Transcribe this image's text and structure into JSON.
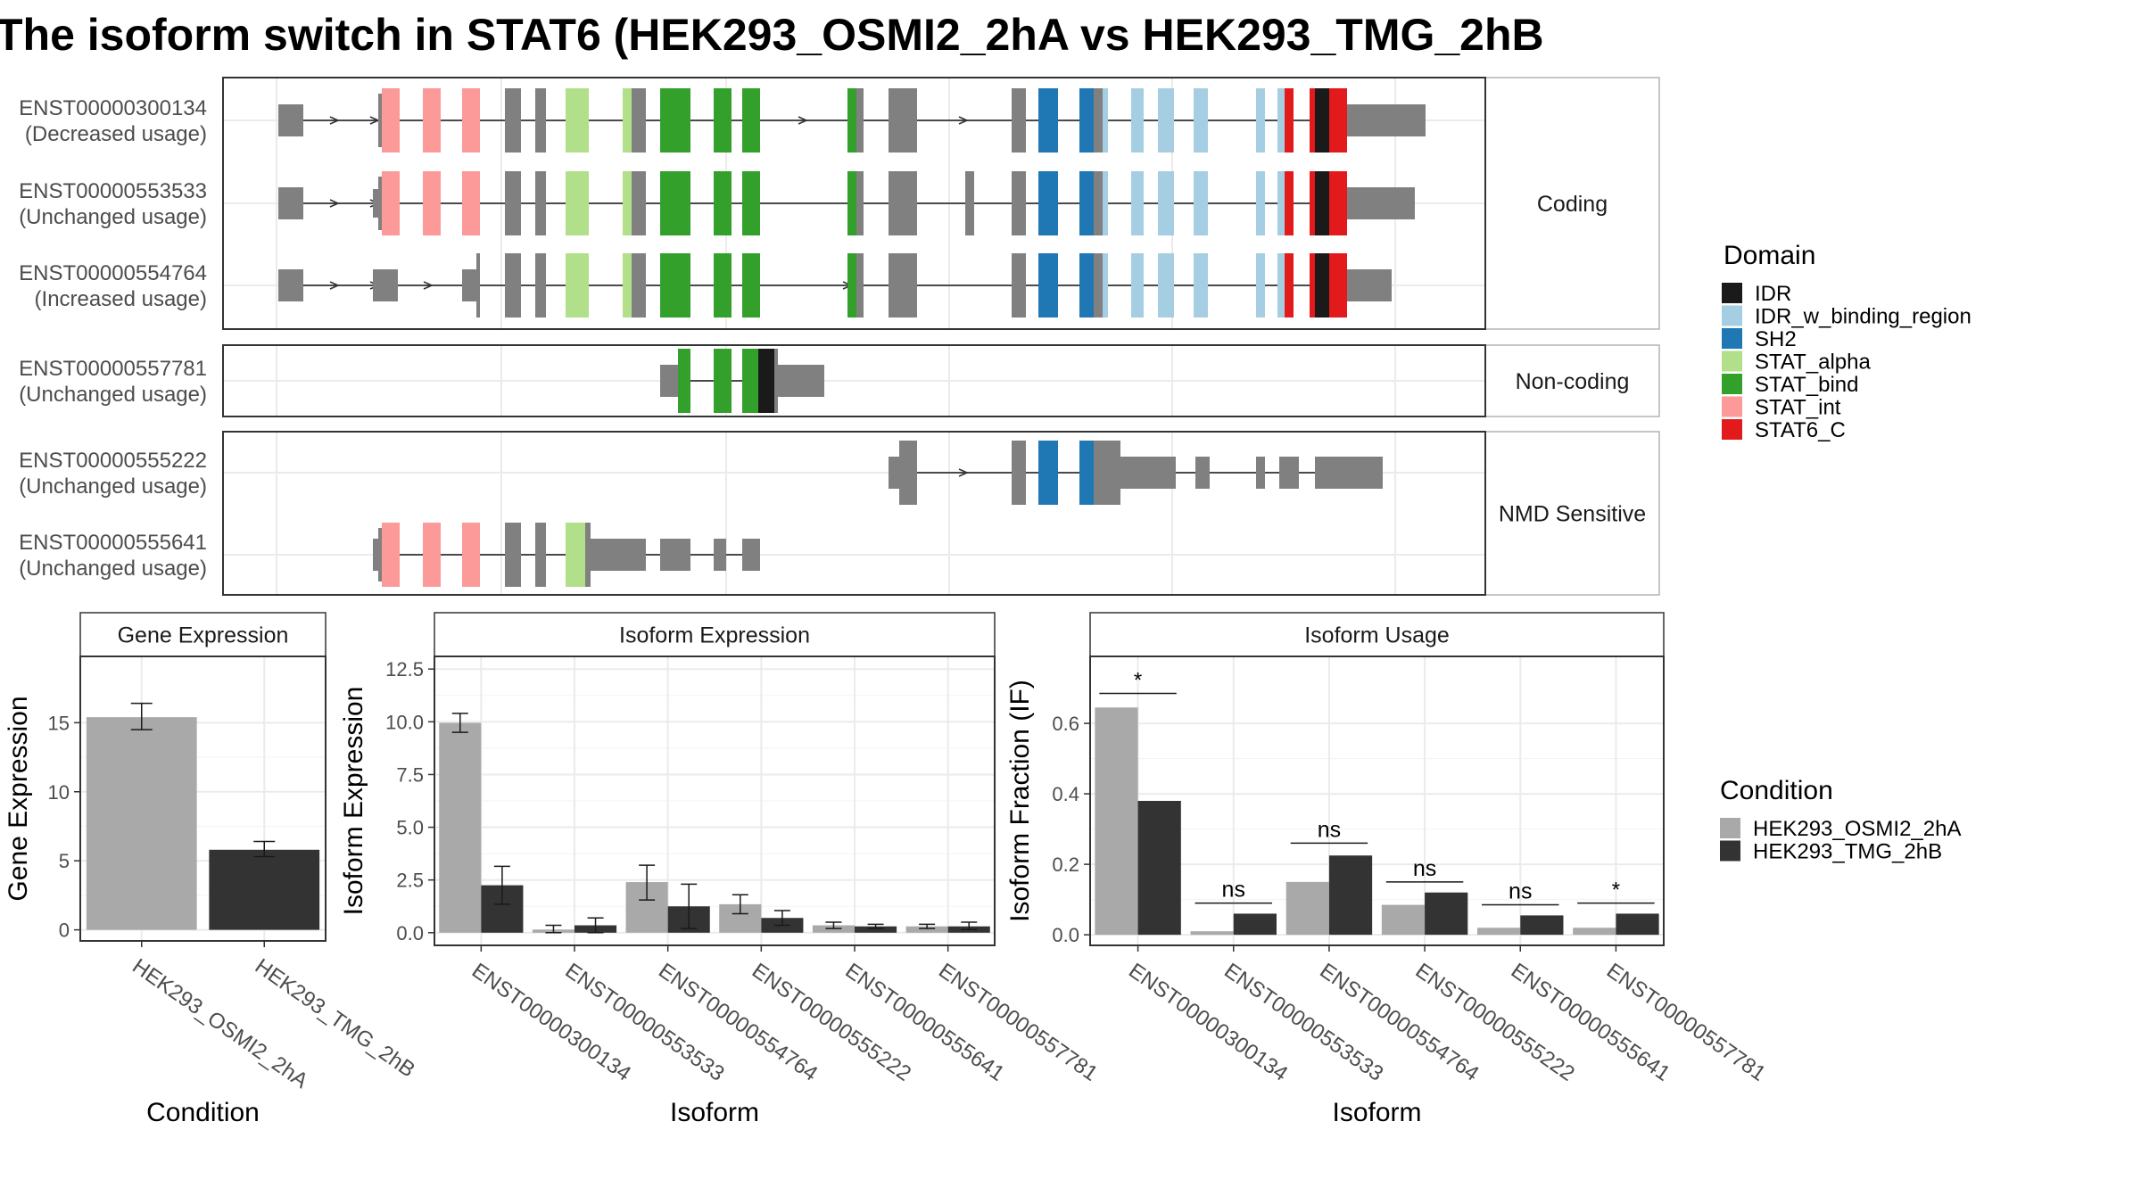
{
  "title": "The isoform switch in STAT6 (HEK293_OSMI2_2hA vs HEK293_TMG_2hB",
  "colors": {
    "IDR": "#1a1a1a",
    "IDR_w_binding_region": "#a6cee3",
    "SH2": "#1f78b4",
    "STAT_alpha": "#b2df8a",
    "STAT_bind": "#33a02c",
    "STAT_int": "#fb9a99",
    "STAT6_C": "#e31a1c",
    "exon": "#808080",
    "cond1": "#a9a9a9",
    "cond2": "#333333"
  },
  "legend_domain": {
    "title": "Domain",
    "items": [
      "IDR",
      "IDR_w_binding_region",
      "SH2",
      "STAT_alpha",
      "STAT_bind",
      "STAT_int",
      "STAT6_C"
    ]
  },
  "legend_condition": {
    "title": "Condition",
    "items": [
      "HEK293_OSMI2_2hA",
      "HEK293_TMG_2hB"
    ]
  },
  "transcript_panels": [
    {
      "label": "Coding",
      "transcripts": [
        {
          "id": "ENST00000300134",
          "usage": "(Decreased usage)"
        },
        {
          "id": "ENST00000553533",
          "usage": "(Unchanged usage)"
        },
        {
          "id": "ENST00000554764",
          "usage": "(Increased usage)"
        }
      ]
    },
    {
      "label": "Non-coding",
      "transcripts": [
        {
          "id": "ENST00000557781",
          "usage": "(Unchanged usage)"
        }
      ]
    },
    {
      "label": "NMD Sensitive",
      "transcripts": [
        {
          "id": "ENST00000555222",
          "usage": "(Unchanged usage)"
        },
        {
          "id": "ENST00000555641",
          "usage": "(Unchanged usage)"
        }
      ]
    }
  ],
  "chart_data": [
    {
      "type": "bar",
      "title": "Gene Expression",
      "xlabel": "Condition",
      "ylabel": "Gene Expression",
      "categories": [
        "HEK293_OSMI2_2hA",
        "HEK293_TMG_2hB"
      ],
      "values": [
        15.4,
        5.8
      ],
      "errors": [
        [
          14.5,
          16.4
        ],
        [
          5.3,
          6.4
        ]
      ],
      "ylim": [
        -0.8,
        19.8
      ],
      "yticks": [
        0,
        5,
        10,
        15
      ]
    },
    {
      "type": "bar",
      "title": "Isoform Expression",
      "xlabel": "Isoform",
      "ylabel": "Isoform Expression",
      "categories": [
        "ENST00000300134",
        "ENST00000553533",
        "ENST00000554764",
        "ENST00000555222",
        "ENST00000555641",
        "ENST00000557781"
      ],
      "series": [
        {
          "name": "HEK293_OSMI2_2hA",
          "values": [
            9.95,
            0.15,
            2.4,
            1.35,
            0.35,
            0.3
          ],
          "errors": [
            [
              9.5,
              10.4
            ],
            [
              0.0,
              0.35
            ],
            [
              1.55,
              3.2
            ],
            [
              0.9,
              1.8
            ],
            [
              0.2,
              0.5
            ],
            [
              0.2,
              0.4
            ]
          ]
        },
        {
          "name": "HEK293_TMG_2hB",
          "values": [
            2.25,
            0.35,
            1.25,
            0.7,
            0.3,
            0.3
          ],
          "errors": [
            [
              1.35,
              3.15
            ],
            [
              0.0,
              0.7
            ],
            [
              0.2,
              2.3
            ],
            [
              0.35,
              1.05
            ],
            [
              0.2,
              0.4
            ],
            [
              0.15,
              0.5
            ]
          ]
        }
      ],
      "ylim": [
        -0.6,
        13.1
      ],
      "yticks": [
        0.0,
        2.5,
        5.0,
        7.5,
        10.0,
        12.5
      ]
    },
    {
      "type": "bar",
      "title": "Isoform Usage",
      "xlabel": "Isoform",
      "ylabel": "Isoform Fraction (IF)",
      "categories": [
        "ENST00000300134",
        "ENST00000553533",
        "ENST00000554764",
        "ENST00000555222",
        "ENST00000555641",
        "ENST00000557781"
      ],
      "series": [
        {
          "name": "HEK293_OSMI2_2hA",
          "values": [
            0.645,
            0.01,
            0.15,
            0.085,
            0.02,
            0.02
          ]
        },
        {
          "name": "HEK293_TMG_2hB",
          "values": [
            0.38,
            0.06,
            0.225,
            0.12,
            0.055,
            0.06
          ]
        }
      ],
      "significance": [
        "*",
        "ns",
        "ns",
        "ns",
        "ns",
        "*"
      ],
      "sig_heights": [
        0.685,
        0.09,
        0.26,
        0.15,
        0.085,
        0.09
      ],
      "ylim": [
        -0.03,
        0.79
      ],
      "yticks": [
        0.0,
        0.2,
        0.4,
        0.6
      ]
    }
  ]
}
